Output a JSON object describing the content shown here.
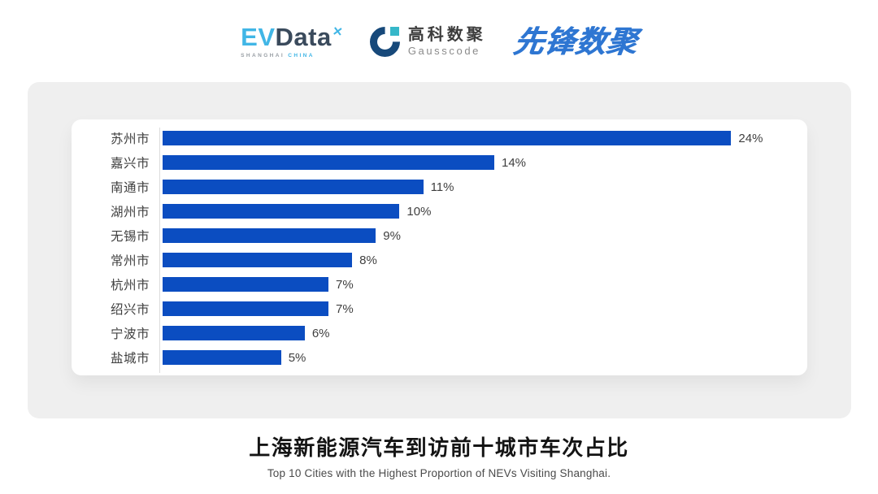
{
  "header": {
    "evdata": {
      "ev": "EV",
      "data": "Data",
      "sub_left": "SHANGHAI",
      "sub_right": "CHINA"
    },
    "gausscode": {
      "cn": "高科数聚",
      "en": "Gausscode"
    },
    "pioneer": "先锋数聚"
  },
  "icons": {
    "evdata_spark": "✕"
  },
  "chart_data": {
    "type": "bar",
    "orientation": "horizontal",
    "title": "上海新能源汽车到访前十城市车次占比",
    "subtitle": "Top 10 Cities with the Highest Proportion of  NEVs Visiting Shanghai.",
    "categories": [
      "苏州市",
      "嘉兴市",
      "南通市",
      "湖州市",
      "无锡市",
      "常州市",
      "杭州市",
      "绍兴市",
      "宁波市",
      "盐城市"
    ],
    "values": [
      24,
      14,
      11,
      10,
      9,
      8,
      7,
      7,
      6,
      5
    ],
    "value_suffix": "%",
    "xlim": [
      0,
      24
    ],
    "grid": false,
    "legend": false,
    "bar_color": "#0B4DC1",
    "label_color": "#3F3F3F",
    "axis_line_color": "#DCDCDC"
  },
  "colors": {
    "panel_bg": "#EFEFEF",
    "card_bg": "#FFFFFF",
    "evdata_blue": "#41B6E6",
    "evdata_navy": "#3A4A5C",
    "gauss_navy": "#17497A",
    "gauss_teal": "#36B7C9",
    "pioneer_blue": "#2E76D2",
    "title_color": "#141414",
    "subtitle_color": "#4A4A4A"
  }
}
